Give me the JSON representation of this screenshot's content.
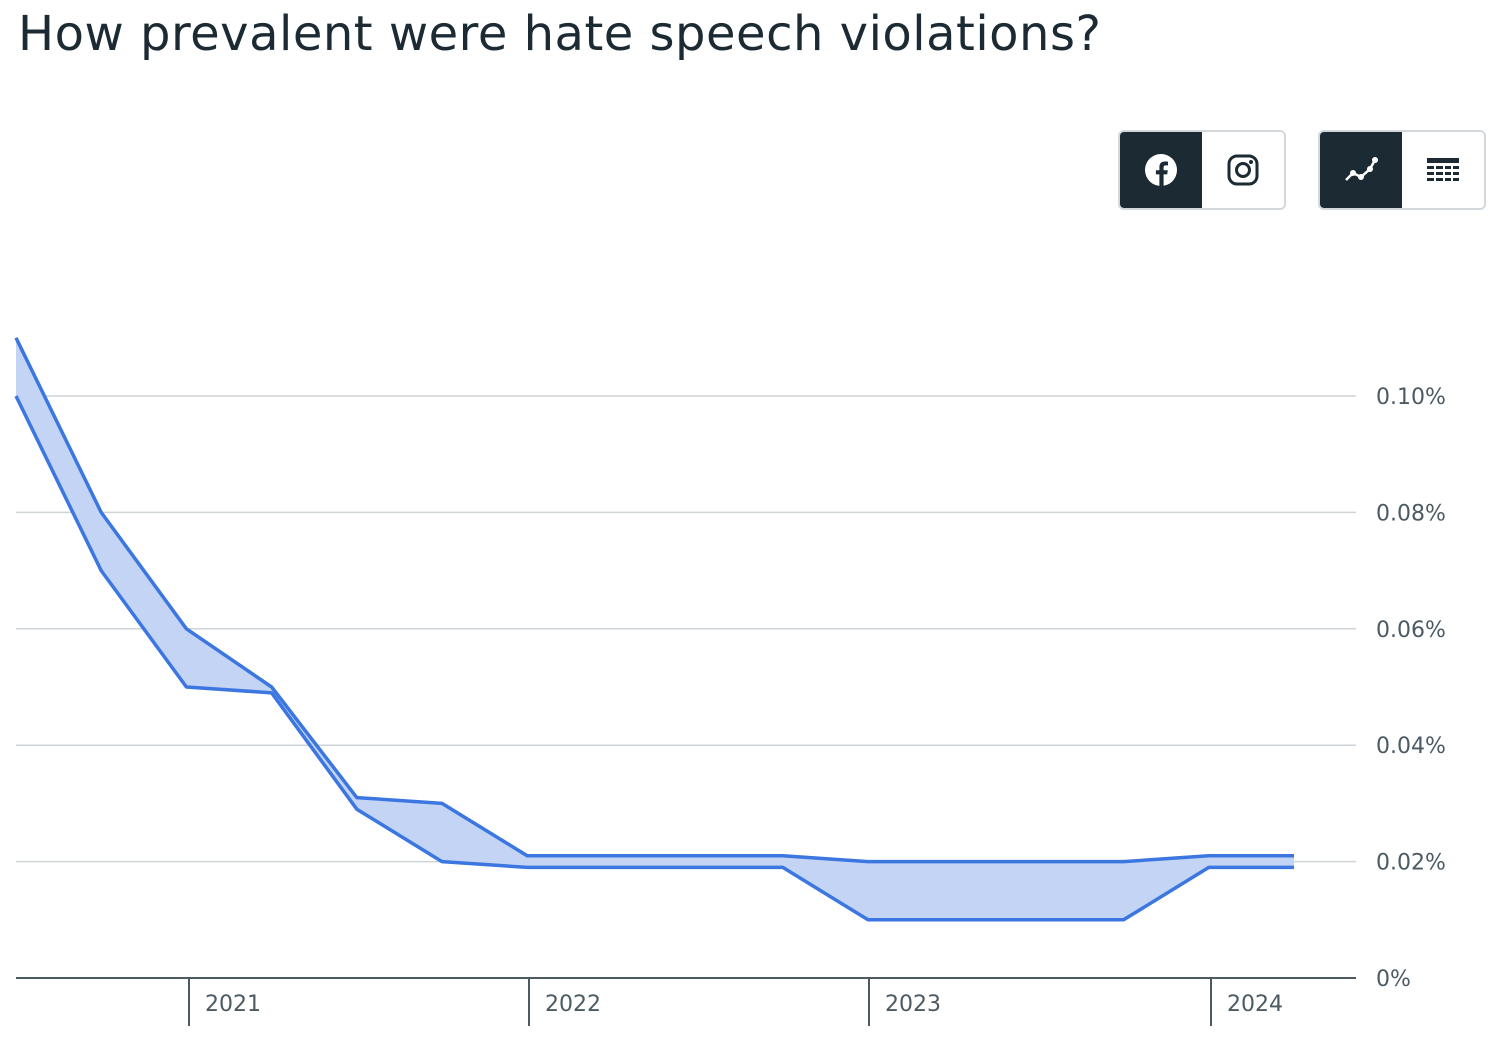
{
  "title": "How prevalent were hate speech violations?",
  "platform_toggle": {
    "options": [
      {
        "icon": "facebook-icon",
        "active": true
      },
      {
        "icon": "instagram-icon",
        "active": false
      }
    ]
  },
  "view_toggle": {
    "options": [
      {
        "icon": "line-chart-icon",
        "active": true
      },
      {
        "icon": "table-icon",
        "active": false
      }
    ]
  },
  "colors": {
    "line": "#3b76e1",
    "band_fill": "#c3d4f5",
    "grid": "#ced3d7",
    "axis": "#4b5a63",
    "active_button": "#1c2b33"
  },
  "chart_data": {
    "type": "area",
    "x": [
      "2020 Q3",
      "2020 Q4",
      "2021 Q1",
      "2021 Q2",
      "2021 Q3",
      "2021 Q4",
      "2022 Q1",
      "2022 Q2",
      "2022 Q3",
      "2022 Q4",
      "2023 Q1",
      "2023 Q2",
      "2023 Q3",
      "2023 Q4",
      "2024 Q1",
      "2024 Q2"
    ],
    "series": [
      {
        "values": [
          0.11,
          0.08,
          0.06,
          0.05,
          0.031,
          0.03,
          0.021,
          0.021,
          0.021,
          0.021,
          0.02,
          0.02,
          0.02,
          0.02,
          0.021,
          0.021
        ]
      },
      {
        "values": [
          0.1,
          0.07,
          0.05,
          0.049,
          0.029,
          0.02,
          0.019,
          0.019,
          0.019,
          0.019,
          0.01,
          0.01,
          0.01,
          0.01,
          0.019,
          0.019
        ]
      }
    ],
    "band": "range between the two series is shaded",
    "xticks": [
      "2021",
      "2022",
      "2023",
      "2024"
    ],
    "yticks": [
      "0%",
      "0.02%",
      "0.04%",
      "0.06%",
      "0.08%",
      "0.10%"
    ],
    "ylim": [
      0,
      0.11
    ],
    "yaxis_position": "right",
    "grid": true,
    "legend": "none"
  }
}
